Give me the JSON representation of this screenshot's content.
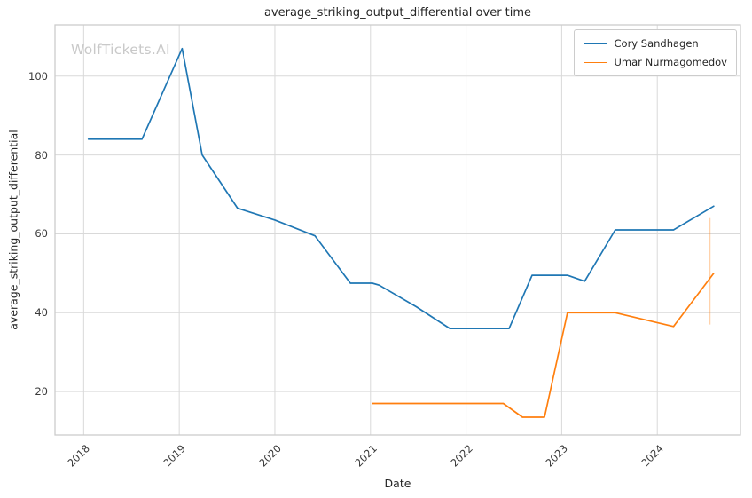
{
  "watermark": "WolfTickets.AI",
  "chart_data": {
    "type": "line",
    "title": "average_striking_output_differential over time",
    "xlabel": "Date",
    "ylabel": "average_striking_output_differential",
    "xlim": [
      2017.7,
      2024.87
    ],
    "ylim": [
      9,
      113
    ],
    "xticks": [
      2018,
      2019,
      2020,
      2021,
      2022,
      2023,
      2024
    ],
    "yticks": [
      20,
      40,
      60,
      80,
      100
    ],
    "grid": true,
    "legend_position": "top-right",
    "background_color": "#ffffff",
    "grid_color": "#d9d9d9",
    "spine_color": "#cccccc",
    "series": [
      {
        "name": "Cory Sandhagen",
        "color": "#1f77b4",
        "points": [
          [
            2018.05,
            84
          ],
          [
            2018.61,
            84
          ],
          [
            2019.03,
            107
          ],
          [
            2019.24,
            80
          ],
          [
            2019.61,
            66.5
          ],
          [
            2020.0,
            63.5
          ],
          [
            2020.42,
            59.5
          ],
          [
            2020.79,
            47.5
          ],
          [
            2021.02,
            47.5
          ],
          [
            2021.09,
            47
          ],
          [
            2021.48,
            41.5
          ],
          [
            2021.83,
            36
          ],
          [
            2022.45,
            36
          ],
          [
            2022.69,
            49.5
          ],
          [
            2023.06,
            49.5
          ],
          [
            2023.24,
            48
          ],
          [
            2023.56,
            61
          ],
          [
            2024.17,
            61
          ],
          [
            2024.59,
            67
          ]
        ]
      },
      {
        "name": "Umar Nurmagomedov",
        "color": "#ff7f0e",
        "points": [
          [
            2021.02,
            17
          ],
          [
            2022.39,
            17
          ],
          [
            2022.59,
            13.5
          ],
          [
            2022.82,
            13.5
          ],
          [
            2023.06,
            40
          ],
          [
            2023.56,
            40
          ],
          [
            2024.17,
            36.5
          ],
          [
            2024.59,
            50
          ]
        ]
      }
    ],
    "annotations": {
      "vline": {
        "x": 2024.55,
        "y1": 37,
        "y2": 64,
        "color": "#ff7f0e",
        "opacity": 0.35
      }
    }
  }
}
